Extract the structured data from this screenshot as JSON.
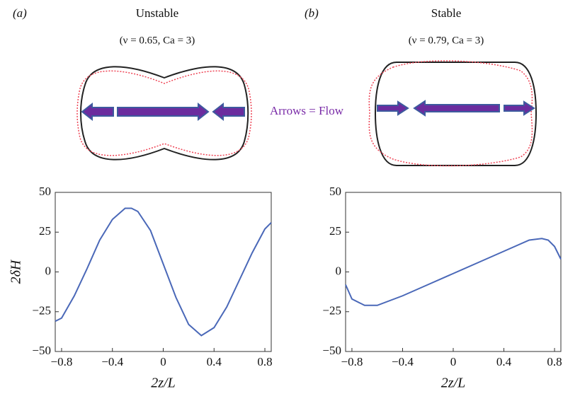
{
  "annotation": "Arrows = Flow",
  "chart_data": [
    {
      "type": "line",
      "panel": "(a)",
      "title": "Unstable",
      "subtitle": "(ν = 0.65, Ca = 3)",
      "xlabel": "2z/L",
      "ylabel": "2δH",
      "x": [
        -0.85,
        -0.8,
        -0.7,
        -0.6,
        -0.5,
        -0.4,
        -0.3,
        -0.25,
        -0.2,
        -0.1,
        0,
        0.1,
        0.2,
        0.3,
        0.4,
        0.5,
        0.6,
        0.7,
        0.8,
        0.85
      ],
      "series": [
        {
          "color": "#4a68b8",
          "values": [
            -31,
            -29,
            -15,
            2,
            20,
            33,
            40,
            40,
            38,
            26,
            5,
            -16,
            -33,
            -40,
            -35,
            -22,
            -5,
            12,
            27,
            31
          ]
        }
      ],
      "xlim": [
        -0.85,
        0.85
      ],
      "ylim": [
        -50,
        50
      ],
      "xticks": [
        {
          "value": -0.8,
          "label": "−0.8"
        },
        {
          "value": -0.4,
          "label": "−0.4"
        },
        0,
        0.4,
        0.8
      ],
      "yticks": [
        {
          "value": -50,
          "label": "−50"
        },
        {
          "value": -25,
          "label": "−25"
        },
        0,
        25,
        50
      ]
    },
    {
      "type": "line",
      "panel": "(b)",
      "title": "Stable",
      "subtitle": "(ν = 0.79, Ca = 3)",
      "xlabel": "2z/L",
      "x": [
        -0.85,
        -0.8,
        -0.7,
        -0.6,
        -0.4,
        -0.2,
        0,
        0.2,
        0.4,
        0.6,
        0.7,
        0.75,
        0.8,
        0.85
      ],
      "series": [
        {
          "color": "#4a68b8",
          "values": [
            -8,
            -17,
            -21,
            -21,
            -15,
            -8,
            -1,
            6,
            13,
            20,
            21,
            20,
            16,
            8
          ]
        }
      ],
      "xlim": [
        -0.85,
        0.85
      ],
      "ylim": [
        -50,
        50
      ],
      "xticks": [
        {
          "value": -0.8,
          "label": "−0.8"
        },
        {
          "value": -0.4,
          "label": "−0.4"
        },
        0,
        0.4,
        0.8
      ],
      "yticks": [
        {
          "value": -50,
          "label": "−50"
        },
        {
          "value": -25,
          "label": "−25"
        },
        0,
        25,
        50
      ]
    }
  ]
}
